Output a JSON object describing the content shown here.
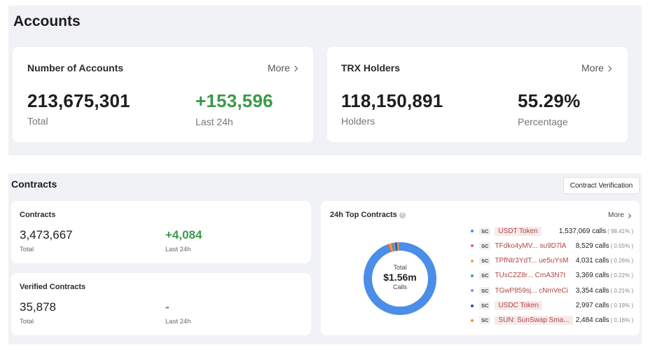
{
  "accounts": {
    "title": "Accounts",
    "number_of_accounts": {
      "title": "Number of Accounts",
      "more": "More",
      "total_value": "213,675,301",
      "total_label": "Total",
      "delta_value": "+153,596",
      "delta_label": "Last 24h"
    },
    "trx_holders": {
      "title": "TRX Holders",
      "more": "More",
      "holders_value": "118,150,891",
      "holders_label": "Holders",
      "percentage_value": "55.29%",
      "percentage_label": "Percentage"
    }
  },
  "contracts": {
    "title": "Contracts",
    "verify_button": "Contract Verification",
    "contracts_card": {
      "title": "Contracts",
      "total_value": "3,473,667",
      "total_label": "Total",
      "delta_value": "+4,084",
      "delta_label": "Last 24h"
    },
    "verified_card": {
      "title": "Verified Contracts",
      "total_value": "35,878",
      "total_label": "Total",
      "delta_value": "-",
      "delta_label": "Last 24h"
    },
    "top_contracts": {
      "title": "24h Top Contracts",
      "more": "More",
      "donut": {
        "top_label": "Total",
        "value": "$1.56m",
        "bottom_label": "Calls",
        "main_color": "#4a8ee8"
      },
      "badge": "SC",
      "rows": [
        {
          "name": "USDT Token",
          "is_address": false,
          "calls": "1,537,069 calls",
          "pct": "( 98.41% )",
          "color": "#4a8ee8"
        },
        {
          "name": "TFdko4yMV... su9D7lA",
          "is_address": true,
          "calls": "8,529 calls",
          "pct": "( 0.55% )",
          "color": "#e8675f"
        },
        {
          "name": "TPfNtr3YdT... ue5uYsM",
          "is_address": true,
          "calls": "4,031 calls",
          "pct": "( 0.26% )",
          "color": "#f1a146"
        },
        {
          "name": "TUsCZZ8r... CmA3N7t",
          "is_address": true,
          "calls": "3,369 calls",
          "pct": "( 0.22% )",
          "color": "#3eaa62"
        },
        {
          "name": "TGwP859sj... cNmVeCi",
          "is_address": true,
          "calls": "3,354 calls",
          "pct": "( 0.21% )",
          "color": "#b07ad8"
        },
        {
          "name": "USDC Token",
          "is_address": false,
          "calls": "2,997 calls",
          "pct": "( 0.19% )",
          "color": "#2b4f9e"
        },
        {
          "name": "SUN: SunSwap Sma...",
          "is_address": false,
          "calls": "2,484 calls",
          "pct": "( 0.16% )",
          "color": "#e09a2a"
        }
      ]
    }
  }
}
